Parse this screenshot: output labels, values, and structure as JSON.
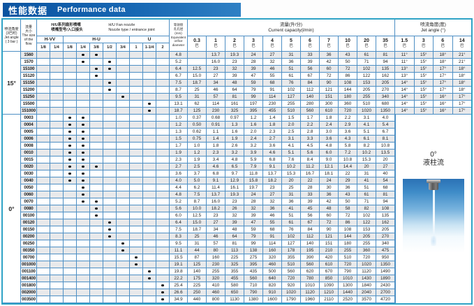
{
  "title": {
    "zh": "性能数据",
    "en": "Performance data"
  },
  "colors": {
    "bar_blue": "#1767b3",
    "grid_blue": "#4d8fc4",
    "outer_teal": "#2fa3c6",
    "stripe_gray": "#e8e9eb"
  },
  "header": {
    "jet_angle_left_lines": [
      "喷流角度",
      "(3巴时)",
      "Jet angle",
      "( 3 bar )"
    ],
    "flow_lines": [
      "流量",
      "大小",
      "The size",
      "of the flow"
    ],
    "nozzle_zh": [
      "H/U系列扇形喷嘴",
      "喷嘴型号/入口接头"
    ],
    "nozzle_en": [
      "H/U  Fan nozzle",
      "Nozzle type / entrance joint"
    ],
    "orifice_lines": [
      "等效喷",
      "孔孔径",
      "(mm)",
      "Equivalent",
      "orifice",
      "diameter"
    ],
    "capacity_zh": "流量(升/分)",
    "capacity_en": "Current capacity(l/min)",
    "angle_zh": "喷流角度(度)",
    "angle_en": "Jet angle (°)",
    "bar_unit": "巴",
    "subgroups": [
      {
        "label": "H-VV",
        "cols": [
          "1/8",
          "1/4"
        ]
      },
      {
        "label": "H-U",
        "cols": [
          "1/8",
          "1/4",
          "3/8",
          "1/2",
          "3/4"
        ]
      },
      {
        "label": "U",
        "cols": [
          "1",
          "1-1/4",
          "2"
        ]
      }
    ],
    "pressures": [
      "0.3",
      "1",
      "2",
      "3",
      "4",
      "5",
      "6",
      "7",
      "10",
      "20",
      "35"
    ],
    "angle_pressures": [
      "1.5",
      "3",
      "6",
      "14"
    ]
  },
  "sections": [
    {
      "label": "15°",
      "rows": [
        {
          "code": "1560",
          "dots": [
            4,
            5
          ],
          "orifice": "4.8",
          "flows": [
            "",
            "13.7",
            "19.3",
            "24",
            "27",
            "31",
            "33",
            "36",
            "43",
            "61",
            "81"
          ],
          "angles": [
            "11°",
            "15°",
            "18°",
            "21°"
          ]
        },
        {
          "code": "1570",
          "dots": [
            4,
            6
          ],
          "orifice": "5.2",
          "flows": [
            "",
            "16.0",
            "23",
            "28",
            "32",
            "36",
            "39",
            "42",
            "50",
            "71",
            "94"
          ],
          "angles": [
            "11°",
            "15°",
            "18°",
            "21°"
          ]
        },
        {
          "code": "15100",
          "dots": [
            5,
            6
          ],
          "orifice": "6.4",
          "flows": [
            "12.5",
            "23",
            "32",
            "39",
            "46",
            "51",
            "56",
            "60",
            "72",
            "102",
            "135"
          ],
          "angles": [
            "13°",
            "15°",
            "17°",
            "18°"
          ]
        },
        {
          "code": "15120",
          "dots": [
            5
          ],
          "orifice": "6.7",
          "flows": [
            "15.0",
            "27",
            "39",
            "47",
            "55",
            "61",
            "67",
            "72",
            "86",
            "122",
            "162"
          ],
          "angles": [
            "13°",
            "15°",
            "17°",
            "18°"
          ]
        },
        {
          "code": "15150",
          "dots": [
            6
          ],
          "orifice": "7.5",
          "flows": [
            "18.7",
            "34",
            "48",
            "59",
            "68",
            "76",
            "84",
            "90",
            "108",
            "153",
            "205"
          ],
          "angles": [
            "14°",
            "15°",
            "17°",
            "18°"
          ]
        },
        {
          "code": "15200",
          "dots": [
            6
          ],
          "orifice": "8.7",
          "flows": [
            "25",
            "46",
            "64",
            "79",
            "91",
            "102",
            "112",
            "121",
            "144",
            "205",
            "270"
          ],
          "angles": [
            "14°",
            "15°",
            "17°",
            "18°"
          ]
        },
        {
          "code": "15250",
          "dots": [
            7
          ],
          "orifice": "9.5",
          "flows": [
            "31",
            "57",
            "81",
            "99",
            "114",
            "127",
            "140",
            "151",
            "180",
            "255",
            "340"
          ],
          "angles": [
            "14°",
            "15°",
            "16°",
            "17°"
          ]
        },
        {
          "code": "15500",
          "dots": [
            9
          ],
          "orifice": "13.1",
          "flows": [
            "62",
            "114",
            "161",
            "197",
            "230",
            "255",
            "280",
            "300",
            "360",
            "510",
            "680"
          ],
          "angles": [
            "14°",
            "15°",
            "16°",
            "17°"
          ]
        },
        {
          "code": "151000",
          "dots": [
            9
          ],
          "orifice": "18.7",
          "flows": [
            "125",
            "230",
            "325",
            "395",
            "455",
            "510",
            "560",
            "610",
            "720",
            "1020",
            "1350"
          ],
          "angles": [
            "14°",
            "15°",
            "16°",
            "17°"
          ]
        }
      ]
    },
    {
      "label": "0°",
      "rows": [
        {
          "code": "0003",
          "dots": [
            3,
            4
          ],
          "orifice": "1.0",
          "flows": [
            "0.37",
            "0.68",
            "0.97",
            "1.2",
            "1.4",
            "1.5",
            "1.7",
            "1.8",
            "2.2",
            "3.1",
            "4.0"
          ]
        },
        {
          "code": "0004",
          "dots": [
            3,
            4
          ],
          "orifice": "1.2",
          "flows": [
            "0.50",
            "0.91",
            "1.3",
            "1.6",
            "1.8",
            "2.0",
            "2.2",
            "2.4",
            "2.9",
            "4.1",
            "5.4"
          ]
        },
        {
          "code": "0005",
          "dots": [
            3,
            4
          ],
          "orifice": "1.3",
          "flows": [
            "0.62",
            "1.1",
            "1.6",
            "2.0",
            "2.3",
            "2.5",
            "2.8",
            "3.0",
            "3.6",
            "5.1",
            "6.7"
          ]
        },
        {
          "code": "0006",
          "dots": [
            3,
            4
          ],
          "orifice": "1.5",
          "flows": [
            "0.75",
            "1.4",
            "1.9",
            "2.4",
            "2.7",
            "3.1",
            "3.3",
            "3.6",
            "4.3",
            "6.1",
            "8.1"
          ]
        },
        {
          "code": "0008",
          "dots": [
            3,
            4
          ],
          "orifice": "1.7",
          "flows": [
            "1.0",
            "1.8",
            "2.6",
            "3.2",
            "3.6",
            "4.1",
            "4.5",
            "4.8",
            "5.8",
            "8.2",
            "10.8"
          ]
        },
        {
          "code": "0010",
          "dots": [
            3,
            4
          ],
          "orifice": "1.9",
          "flows": [
            "1.2",
            "2.3",
            "3.2",
            "3.9",
            "4.6",
            "5.1",
            "5.6",
            "6.0",
            "7.2",
            "10.2",
            "13.5"
          ]
        },
        {
          "code": "0015",
          "dots": [
            3,
            4
          ],
          "orifice": "2.3",
          "flows": [
            "1.9",
            "3.4",
            "4.8",
            "5.9",
            "6.8",
            "7.6",
            "8.4",
            "9.0",
            "10.8",
            "15.3",
            "20"
          ]
        },
        {
          "code": "0020",
          "dots": [
            3,
            4,
            5
          ],
          "orifice": "2.7",
          "flows": [
            "2.5",
            "4.6",
            "6.5",
            "7.9",
            "9.1",
            "10.2",
            "11.2",
            "12.1",
            "14.4",
            "20",
            "27"
          ]
        },
        {
          "code": "0030",
          "dots": [
            3,
            4
          ],
          "orifice": "3.6",
          "flows": [
            "3.7",
            "6.8",
            "9.7",
            "11.8",
            "13.7",
            "15.3",
            "16.7",
            "18.1",
            "22",
            "31",
            "40"
          ]
        },
        {
          "code": "0040",
          "dots": [
            3,
            4
          ],
          "orifice": "4.0",
          "flows": [
            "5.0",
            "9.1",
            "12.9",
            "15.8",
            "18.2",
            "20",
            "22",
            "24",
            "29",
            "41",
            "54"
          ]
        },
        {
          "code": "0050",
          "dots": [
            4
          ],
          "orifice": "4.4",
          "flows": [
            "6.2",
            "11.4",
            "16.1",
            "19.7",
            "23",
            "25",
            "28",
            "30",
            "36",
            "51",
            "68"
          ]
        },
        {
          "code": "0060",
          "dots": [
            4
          ],
          "orifice": "4.8",
          "flows": [
            "7.5",
            "13.7",
            "19.3",
            "24",
            "27",
            "31",
            "33",
            "36",
            "43",
            "61",
            "81"
          ]
        },
        {
          "code": "0070",
          "dots": [
            4,
            5
          ],
          "orifice": "5.2",
          "flows": [
            "8.7",
            "16.0",
            "23",
            "28",
            "32",
            "36",
            "39",
            "42",
            "50",
            "71",
            "94"
          ]
        },
        {
          "code": "0080",
          "dots": [
            5
          ],
          "orifice": "5.6",
          "flows": [
            "10.0",
            "18.2",
            "26",
            "32",
            "36",
            "41",
            "45",
            "48",
            "58",
            "82",
            "108"
          ]
        },
        {
          "code": "00100",
          "dots": [
            5
          ],
          "orifice": "6.0",
          "flows": [
            "12.5",
            "23",
            "32",
            "39",
            "46",
            "51",
            "56",
            "60",
            "72",
            "102",
            "135"
          ]
        },
        {
          "code": "00120",
          "dots": [
            6
          ],
          "orifice": "6.4",
          "flows": [
            "15.0",
            "27",
            "39",
            "47",
            "55",
            "61",
            "67",
            "72",
            "86",
            "122",
            "162"
          ]
        },
        {
          "code": "00150",
          "dots": [
            6
          ],
          "orifice": "7.5",
          "flows": [
            "18.7",
            "34",
            "48",
            "59",
            "68",
            "76",
            "84",
            "90",
            "108",
            "153",
            "205"
          ]
        },
        {
          "code": "00200",
          "dots": [
            6
          ],
          "orifice": "8.3",
          "flows": [
            "25",
            "46",
            "64",
            "79",
            "91",
            "102",
            "112",
            "121",
            "144",
            "205",
            "270"
          ]
        },
        {
          "code": "00250",
          "dots": [
            7
          ],
          "orifice": "9.5",
          "flows": [
            "31",
            "57",
            "81",
            "99",
            "114",
            "127",
            "140",
            "151",
            "180",
            "255",
            "340"
          ]
        },
        {
          "code": "00350",
          "dots": [
            7
          ],
          "orifice": "11.1",
          "flows": [
            "44",
            "80",
            "113",
            "138",
            "160",
            "178",
            "195",
            "210",
            "255",
            "360",
            "475"
          ]
        },
        {
          "code": "00700",
          "dots": [
            8
          ],
          "orifice": "15.5",
          "flows": [
            "87",
            "160",
            "225",
            "275",
            "320",
            "355",
            "390",
            "420",
            "510",
            "720",
            "950"
          ]
        },
        {
          "code": "001000",
          "dots": [
            8
          ],
          "orifice": "19.1",
          "flows": [
            "125",
            "230",
            "325",
            "395",
            "460",
            "510",
            "560",
            "610",
            "720",
            "1020",
            "1350"
          ]
        },
        {
          "code": "001100",
          "dots": [
            9
          ],
          "orifice": "19.8",
          "flows": [
            "140",
            "255",
            "355",
            "435",
            "500",
            "560",
            "620",
            "670",
            "790",
            "1120",
            "1490"
          ]
        },
        {
          "code": "001400",
          "dots": [
            9
          ],
          "orifice": "22.2",
          "flows": [
            "175",
            "320",
            "455",
            "560",
            "640",
            "720",
            "780",
            "850",
            "1010",
            "1430",
            "1890"
          ]
        },
        {
          "code": "001800",
          "dots": [
            10
          ],
          "orifice": "25.4",
          "flows": [
            "225",
            "410",
            "580",
            "710",
            "820",
            "920",
            "1010",
            "1090",
            "1300",
            "1840",
            "2430"
          ]
        },
        {
          "code": "002000",
          "dots": [
            10
          ],
          "orifice": "26.6",
          "flows": [
            "250",
            "460",
            "650",
            "790",
            "910",
            "1020",
            "1120",
            "1210",
            "1440",
            "2040",
            "2700"
          ]
        },
        {
          "code": "003500",
          "dots": [
            10
          ],
          "orifice": "34.9",
          "flows": [
            "440",
            "800",
            "1130",
            "1380",
            "1600",
            "1790",
            "1960",
            "2110",
            "2520",
            "3570",
            "4720"
          ]
        }
      ]
    }
  ],
  "panel": {
    "angle": "0°",
    "name": "液柱流"
  }
}
